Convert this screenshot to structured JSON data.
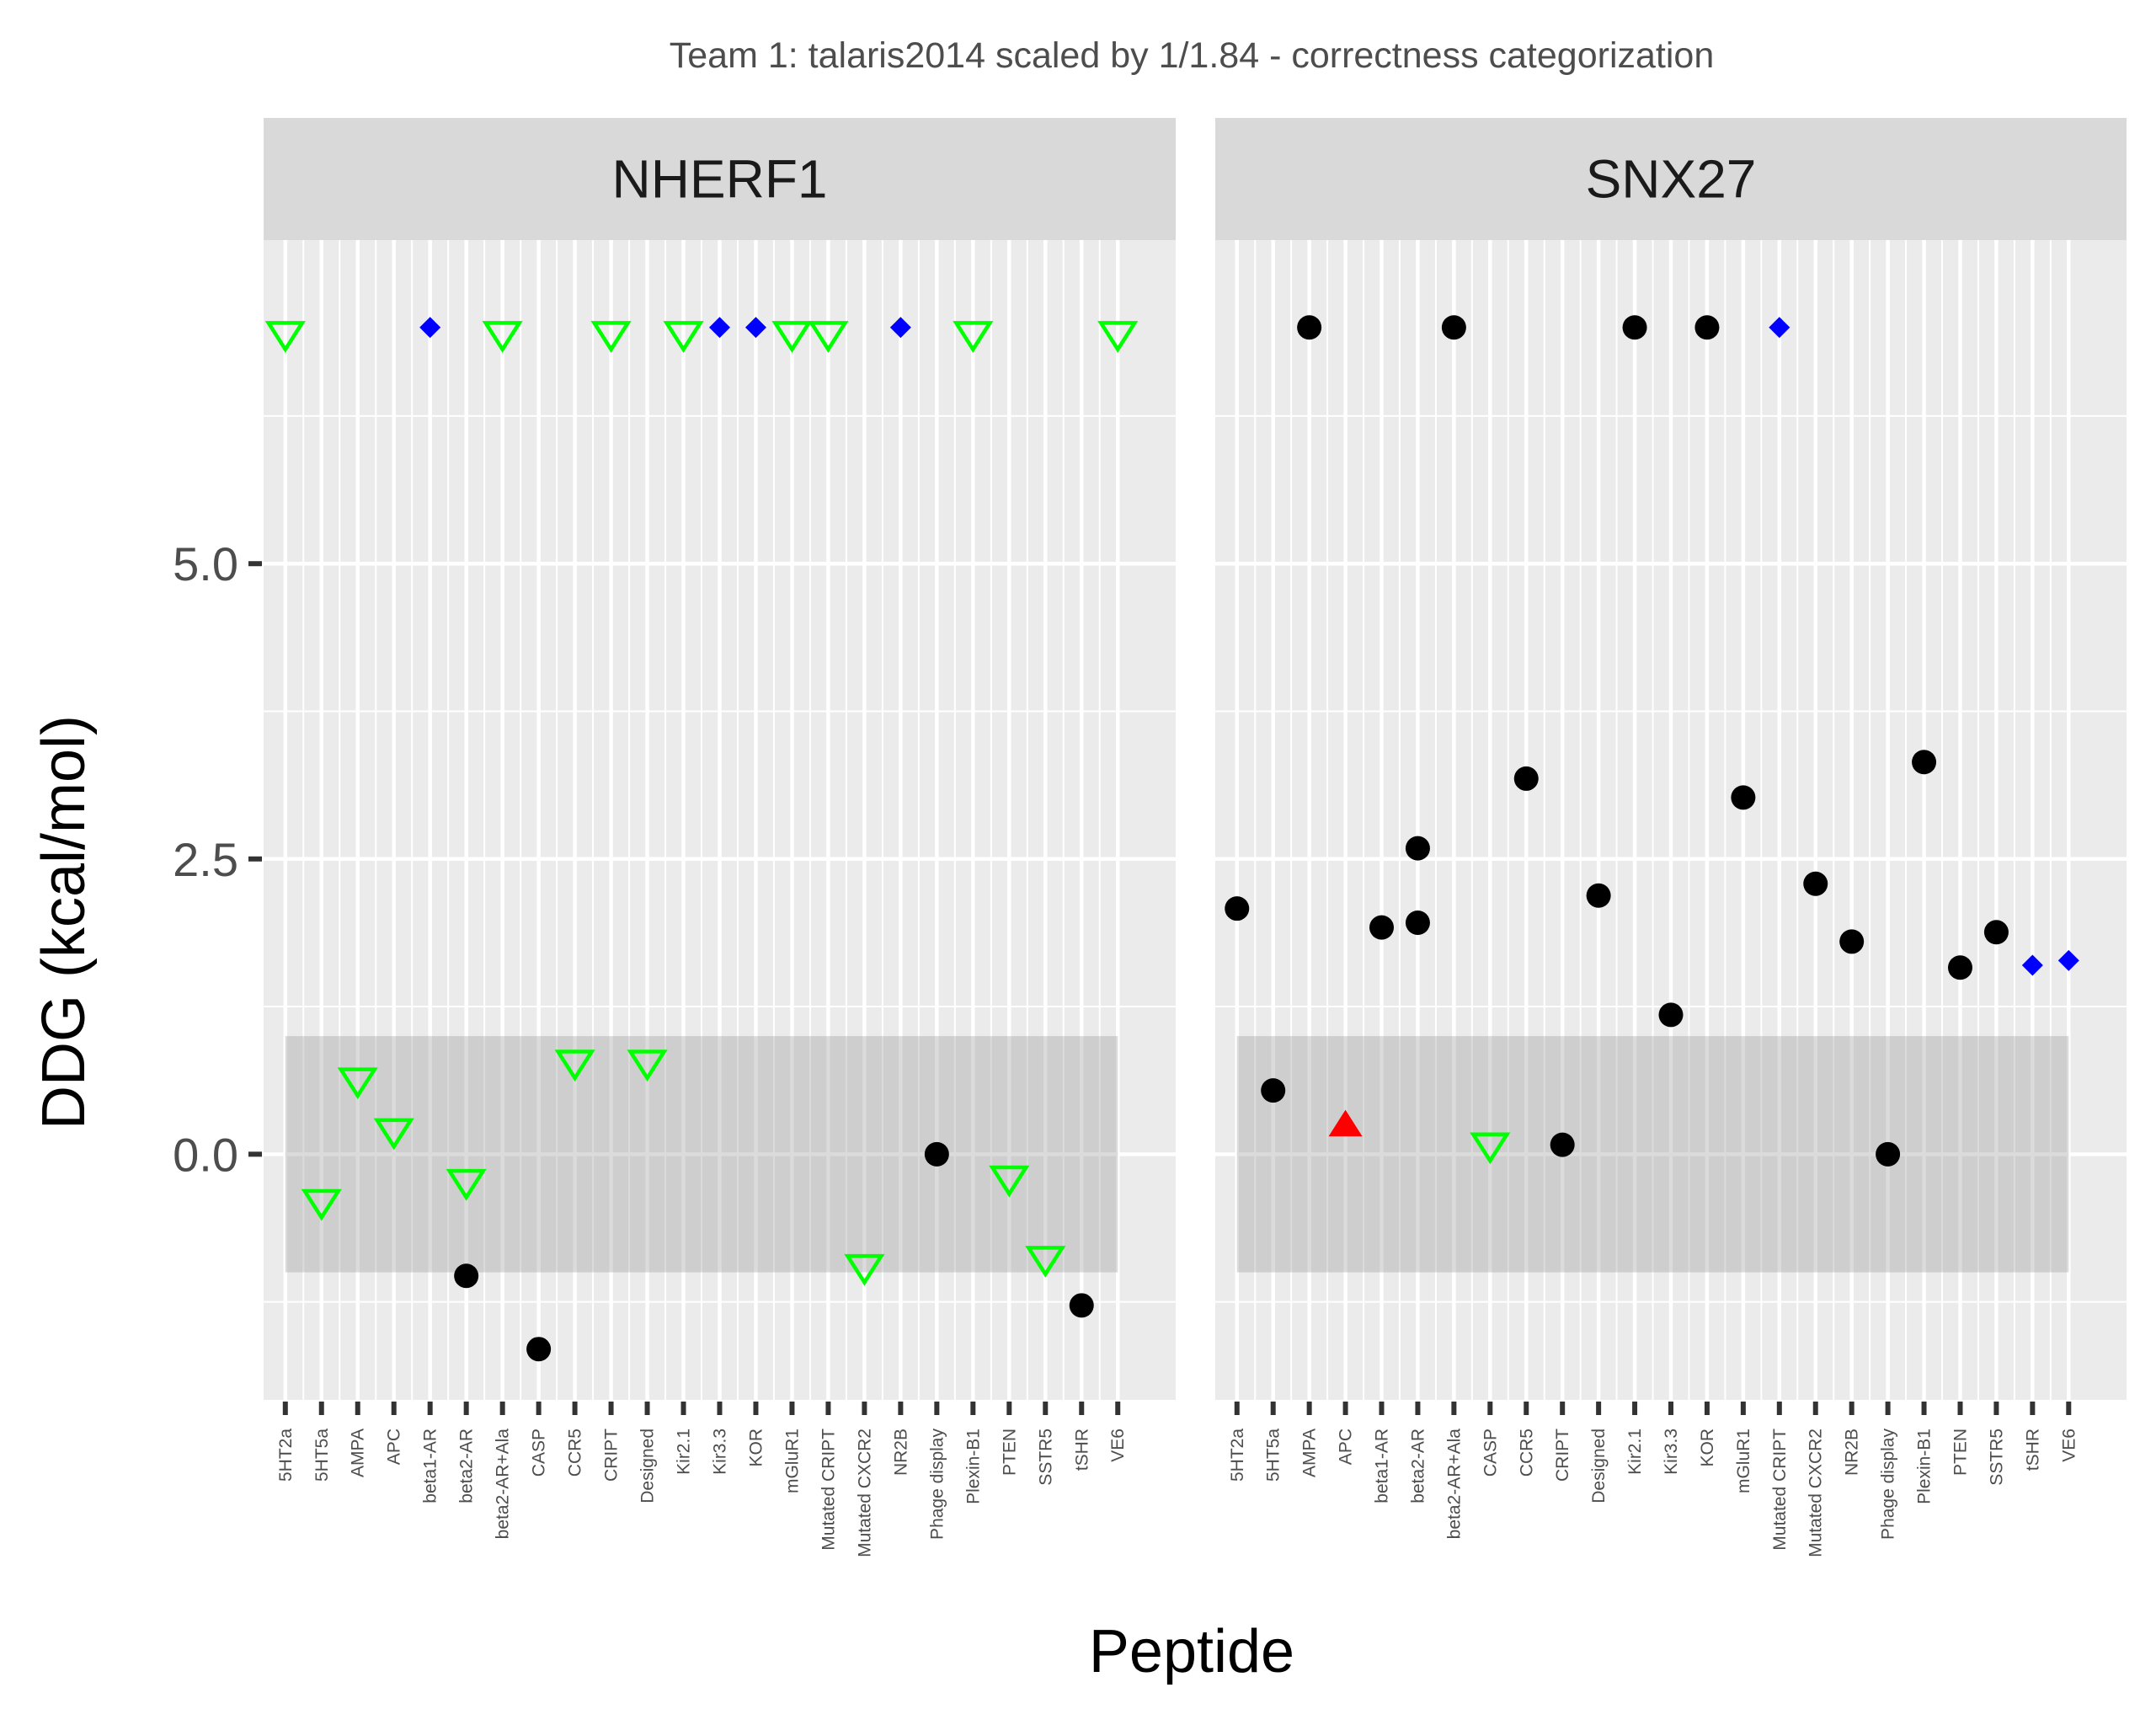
{
  "chart_data": {
    "type": "scatter",
    "title": "Team 1: talaris2014 scaled by 1/1.84 - correctness categorization",
    "xlabel": "Peptide",
    "ylabel": "DDG (kcal/mol)",
    "ylim": [
      -1.65,
      7.1
    ],
    "yticks": [
      0.0,
      2.5,
      5.0
    ],
    "ytick_labels": [
      "0.0",
      "2.5",
      "5.0"
    ],
    "grid": true,
    "shaded_band": [
      -1.0,
      1.0
    ],
    "categories": [
      "5HT2a",
      "5HT5a",
      "AMPA",
      "APC",
      "beta1-AR",
      "beta2-AR",
      "beta2-AR+Ala",
      "CASP",
      "CCR5",
      "CRIPT",
      "Designed",
      "Kir2.1",
      "Kir3.3",
      "KOR",
      "mGluR1",
      "Mutated CRIPT",
      "Mutated CXCR2",
      "NR2B",
      "Phage display",
      "Plexin-B1",
      "PTEN",
      "SSTR5",
      "tSHR",
      "VE6"
    ],
    "marker_styles": {
      "circle": {
        "color": "#000000"
      },
      "triangle-down": {
        "color": "#00ff00"
      },
      "triangle-up": {
        "color": "#ff0000"
      },
      "diamond": {
        "color": "#0000ff"
      }
    },
    "panels": [
      {
        "name": "NHERF1",
        "points": [
          {
            "x": "5HT2a",
            "y": 6.95,
            "marker": "triangle-down"
          },
          {
            "x": "5HT5a",
            "y": -0.4,
            "marker": "triangle-down"
          },
          {
            "x": "AMPA",
            "y": 0.63,
            "marker": "triangle-down"
          },
          {
            "x": "APC",
            "y": 0.2,
            "marker": "triangle-down"
          },
          {
            "x": "beta1-AR",
            "y": 7.0,
            "marker": "diamond"
          },
          {
            "x": "beta2-AR",
            "y": -1.03,
            "marker": "circle"
          },
          {
            "x": "beta2-AR",
            "y": -0.23,
            "marker": "triangle-down"
          },
          {
            "x": "beta2-AR+Ala",
            "y": 6.95,
            "marker": "triangle-down"
          },
          {
            "x": "CASP",
            "y": -1.65,
            "marker": "circle"
          },
          {
            "x": "CCR5",
            "y": 0.78,
            "marker": "triangle-down"
          },
          {
            "x": "CRIPT",
            "y": 6.95,
            "marker": "triangle-down"
          },
          {
            "x": "Designed",
            "y": 0.78,
            "marker": "triangle-down"
          },
          {
            "x": "Kir2.1",
            "y": 6.95,
            "marker": "triangle-down"
          },
          {
            "x": "Kir3.3",
            "y": 7.0,
            "marker": "diamond"
          },
          {
            "x": "KOR",
            "y": 7.0,
            "marker": "diamond"
          },
          {
            "x": "mGluR1",
            "y": 6.95,
            "marker": "triangle-down"
          },
          {
            "x": "Mutated CRIPT",
            "y": 6.95,
            "marker": "triangle-down"
          },
          {
            "x": "Mutated CXCR2",
            "y": -0.95,
            "marker": "triangle-down"
          },
          {
            "x": "NR2B",
            "y": 7.0,
            "marker": "diamond"
          },
          {
            "x": "Phage display",
            "y": 0.0,
            "marker": "circle"
          },
          {
            "x": "Plexin-B1",
            "y": 6.95,
            "marker": "triangle-down"
          },
          {
            "x": "PTEN",
            "y": -0.2,
            "marker": "triangle-down"
          },
          {
            "x": "SSTR5",
            "y": -0.88,
            "marker": "triangle-down"
          },
          {
            "x": "tSHR",
            "y": -1.28,
            "marker": "circle"
          },
          {
            "x": "VE6",
            "y": 6.95,
            "marker": "triangle-down"
          }
        ]
      },
      {
        "name": "SNX27",
        "points": [
          {
            "x": "5HT2a",
            "y": 2.08,
            "marker": "circle"
          },
          {
            "x": "5HT5a",
            "y": 0.54,
            "marker": "circle"
          },
          {
            "x": "AMPA",
            "y": 7.0,
            "marker": "circle"
          },
          {
            "x": "APC",
            "y": 0.24,
            "marker": "triangle-up"
          },
          {
            "x": "beta1-AR",
            "y": 1.92,
            "marker": "circle"
          },
          {
            "x": "beta2-AR",
            "y": 2.59,
            "marker": "circle"
          },
          {
            "x": "beta2-AR",
            "y": 1.96,
            "marker": "circle"
          },
          {
            "x": "beta2-AR+Ala",
            "y": 7.0,
            "marker": "circle"
          },
          {
            "x": "CASP",
            "y": 0.08,
            "marker": "triangle-down"
          },
          {
            "x": "CCR5",
            "y": 3.18,
            "marker": "circle"
          },
          {
            "x": "CRIPT",
            "y": 0.08,
            "marker": "circle"
          },
          {
            "x": "Designed",
            "y": 2.19,
            "marker": "circle"
          },
          {
            "x": "Kir2.1",
            "y": 7.0,
            "marker": "circle"
          },
          {
            "x": "Kir3.3",
            "y": 1.18,
            "marker": "circle"
          },
          {
            "x": "KOR",
            "y": 7.0,
            "marker": "circle"
          },
          {
            "x": "mGluR1",
            "y": 3.02,
            "marker": "circle"
          },
          {
            "x": "Mutated CRIPT",
            "y": 7.0,
            "marker": "diamond"
          },
          {
            "x": "Mutated CXCR2",
            "y": 2.29,
            "marker": "circle"
          },
          {
            "x": "NR2B",
            "y": 1.8,
            "marker": "circle"
          },
          {
            "x": "Phage display",
            "y": 0.0,
            "marker": "circle"
          },
          {
            "x": "Plexin-B1",
            "y": 3.32,
            "marker": "circle"
          },
          {
            "x": "PTEN",
            "y": 1.58,
            "marker": "circle"
          },
          {
            "x": "SSTR5",
            "y": 1.88,
            "marker": "circle"
          },
          {
            "x": "tSHR",
            "y": 1.6,
            "marker": "diamond"
          },
          {
            "x": "VE6",
            "y": 1.64,
            "marker": "diamond"
          }
        ]
      }
    ]
  }
}
